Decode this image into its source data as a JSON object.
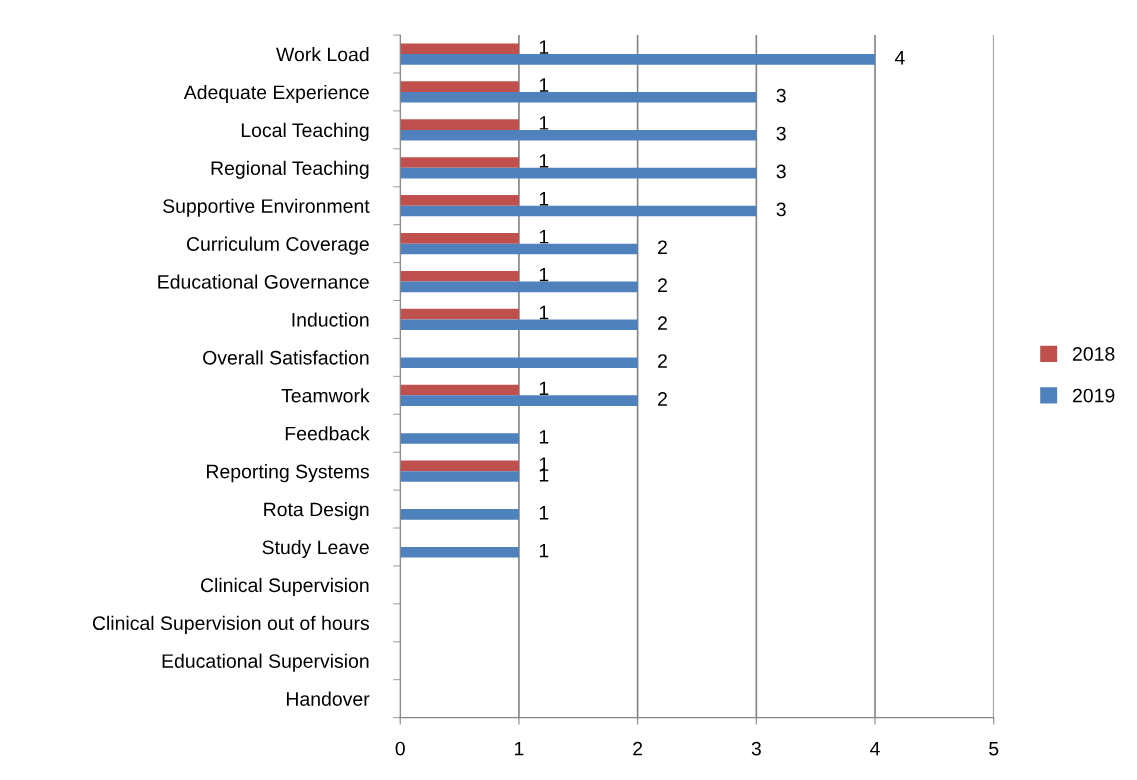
{
  "chart_data": {
    "type": "bar",
    "orientation": "horizontal",
    "categories": [
      "Work Load",
      "Adequate Experience",
      "Local Teaching",
      "Regional Teaching",
      "Supportive Environment",
      "Curriculum Coverage",
      "Educational Governance",
      "Induction",
      "Overall Satisfaction",
      "Teamwork",
      "Feedback",
      "Reporting Systems",
      "Rota Design",
      "Study Leave",
      "Clinical Supervision",
      "Clinical Supervision out of hours",
      "Educational Supervision",
      "Handover"
    ],
    "series": [
      {
        "name": "2018",
        "color": "#c0504d",
        "values": [
          1,
          1,
          1,
          1,
          1,
          1,
          1,
          1,
          null,
          1,
          null,
          1,
          null,
          null,
          null,
          null,
          null,
          null
        ]
      },
      {
        "name": "2019",
        "color": "#4f81bd",
        "values": [
          4,
          3,
          3,
          3,
          3,
          2,
          2,
          2,
          2,
          2,
          1,
          1,
          1,
          1,
          null,
          null,
          null,
          null
        ]
      }
    ],
    "xlim": [
      0,
      5
    ],
    "xticks": [
      0,
      1,
      2,
      3,
      4,
      5
    ],
    "grid": "x",
    "legend": "right",
    "data_labels": true
  }
}
